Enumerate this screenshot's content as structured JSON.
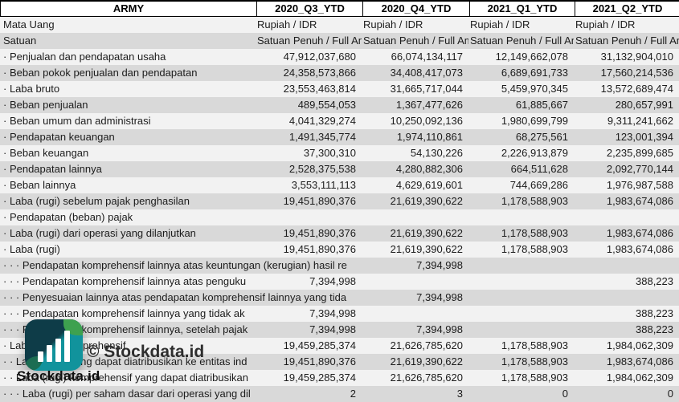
{
  "table": {
    "corner_title": "ARMY",
    "columns": [
      "2020_Q3_YTD",
      "2020_Q4_YTD",
      "2021_Q1_YTD",
      "2021_Q2_YTD"
    ],
    "rows": [
      {
        "label": "Mata Uang",
        "values": [
          "Rupiah / IDR",
          "Rupiah / IDR",
          "Rupiah / IDR",
          "Rupiah / IDR"
        ]
      },
      {
        "label": "Satuan",
        "values": [
          "Satuan Penuh / Full Amount",
          "Satuan Penuh / Full Amount",
          "Satuan Penuh / Full Amount",
          "Satuan Penuh / Full Amount"
        ]
      },
      {
        "label": "· Penjualan dan pendapatan usaha",
        "values": [
          "47,912,037,680",
          "66,074,134,117",
          "12,149,662,078",
          "31,132,904,010"
        ]
      },
      {
        "label": "· Beban pokok penjualan dan pendapatan",
        "values": [
          "24,358,573,866",
          "34,408,417,073",
          "6,689,691,733",
          "17,560,214,536"
        ]
      },
      {
        "label": "· Laba bruto",
        "values": [
          "23,553,463,814",
          "31,665,717,044",
          "5,459,970,345",
          "13,572,689,474"
        ]
      },
      {
        "label": "· Beban penjualan",
        "values": [
          "489,554,053",
          "1,367,477,626",
          "61,885,667",
          "280,657,991"
        ]
      },
      {
        "label": "· Beban umum dan administrasi",
        "values": [
          "4,041,329,274",
          "10,250,092,136",
          "1,980,699,799",
          "9,311,241,662"
        ]
      },
      {
        "label": "· Pendapatan keuangan",
        "values": [
          "1,491,345,774",
          "1,974,110,861",
          "68,275,561",
          "123,001,394"
        ]
      },
      {
        "label": "· Beban keuangan",
        "values": [
          "37,300,310",
          "54,130,226",
          "2,226,913,879",
          "2,235,899,685"
        ]
      },
      {
        "label": "· Pendapatan lainnya",
        "values": [
          "2,528,375,538",
          "4,280,882,306",
          "664,511,628",
          "2,092,770,144"
        ]
      },
      {
        "label": "· Beban lainnya",
        "values": [
          "3,553,111,113",
          "4,629,619,601",
          "744,669,286",
          "1,976,987,588"
        ]
      },
      {
        "label": "· Laba (rugi) sebelum pajak penghasilan",
        "values": [
          "19,451,890,376",
          "21,619,390,622",
          "1,178,588,903",
          "1,983,674,086"
        ]
      },
      {
        "label": "· Pendapatan (beban) pajak",
        "values": [
          "",
          "",
          "",
          ""
        ]
      },
      {
        "label": "· Laba (rugi) dari operasi yang dilanjutkan",
        "values": [
          "19,451,890,376",
          "21,619,390,622",
          "1,178,588,903",
          "1,983,674,086"
        ]
      },
      {
        "label": "· Laba (rugi)",
        "values": [
          "19,451,890,376",
          "21,619,390,622",
          "1,178,588,903",
          "1,983,674,086"
        ]
      },
      {
        "label": "· · · Pendapatan komprehensif lainnya atas keuntungan (kerugian) hasil re",
        "values": [
          "",
          "7,394,998",
          "",
          ""
        ]
      },
      {
        "label": "· · · Pendapatan komprehensif lainnya atas penguku",
        "values": [
          "7,394,998",
          "",
          "",
          "388,223"
        ]
      },
      {
        "label": "· · · Penyesuaian lainnya atas pendapatan komprehensif lainnya yang tida",
        "values": [
          "",
          "7,394,998",
          "",
          ""
        ]
      },
      {
        "label": "· · · Pendapatan komprehensif lainnya yang tidak ak",
        "values": [
          "7,394,998",
          "",
          "",
          "388,223"
        ]
      },
      {
        "label": "· · · Pendapatan komprehensif lainnya, setelah pajak",
        "values": [
          "7,394,998",
          "7,394,998",
          "",
          "388,223"
        ]
      },
      {
        "label": "· Laba (rugi) komprehensif",
        "values": [
          "19,459,285,374",
          "21,626,785,620",
          "1,178,588,903",
          "1,984,062,309"
        ]
      },
      {
        "label": "· · Laba (rugi) yang dapat diatribusikan ke entitas ind",
        "values": [
          "19,451,890,376",
          "21,619,390,622",
          "1,178,588,903",
          "1,983,674,086"
        ]
      },
      {
        "label": "· · Laba (rugi) komprehensif yang dapat diatribusikan",
        "values": [
          "19,459,285,374",
          "21,626,785,620",
          "1,178,588,903",
          "1,984,062,309"
        ]
      },
      {
        "label": "· · · Laba (rugi) per saham dasar dari operasi yang dil",
        "values": [
          "2",
          "3",
          "0",
          "0"
        ]
      }
    ]
  },
  "watermark": {
    "copyright": "© Stockdata.id",
    "brand": "Stockdata.id",
    "icon": "bar-chart-logo",
    "colors": {
      "icon_dark": "#0e3c48",
      "icon_teal": "#11939c",
      "icon_green": "#3ea14f",
      "bars": "#ffffff",
      "stripe_light": "#f2f2f2",
      "stripe_dark": "#d9d9d9"
    }
  }
}
